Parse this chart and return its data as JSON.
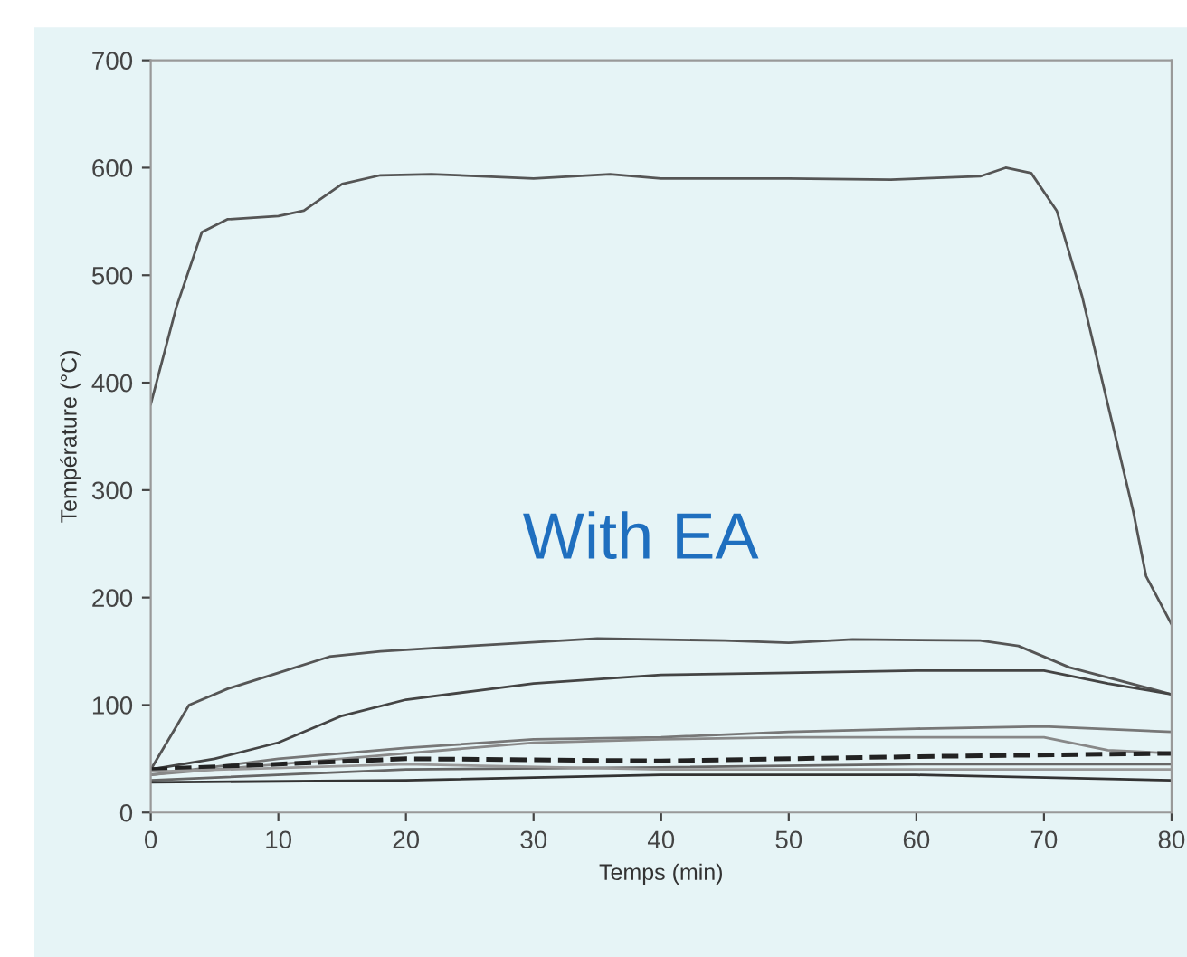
{
  "chart_data": {
    "type": "line",
    "xlabel": "Temps (min)",
    "ylabel": "Température (°C)",
    "annotations": [
      "With EA"
    ],
    "xlim": [
      0,
      80
    ],
    "ylim": [
      0,
      700
    ],
    "xticks": [
      0,
      10,
      20,
      30,
      40,
      50,
      60,
      70,
      80
    ],
    "yticks": [
      0,
      100,
      200,
      300,
      400,
      500,
      600,
      700
    ],
    "grid": false,
    "legend": false,
    "marker": "none",
    "line_style": "solid",
    "series": [
      {
        "color": "#555555",
        "x": [
          0,
          2,
          4,
          6,
          10,
          12,
          15,
          18,
          22,
          30,
          36,
          40,
          50,
          58,
          65,
          67,
          69,
          71,
          73,
          75,
          77,
          78,
          80
        ],
        "values": [
          380,
          470,
          540,
          552,
          555,
          560,
          585,
          593,
          594,
          590,
          594,
          590,
          590,
          589,
          592,
          600,
          595,
          560,
          480,
          380,
          280,
          220,
          175
        ]
      },
      {
        "color": "#555555",
        "x": [
          0,
          3,
          6,
          10,
          14,
          18,
          25,
          35,
          45,
          50,
          55,
          65,
          68,
          72,
          80
        ],
        "values": [
          40,
          100,
          115,
          130,
          145,
          150,
          155,
          162,
          160,
          158,
          161,
          160,
          155,
          135,
          110
        ]
      },
      {
        "color": "#444444",
        "x": [
          0,
          5,
          10,
          15,
          20,
          30,
          40,
          50,
          60,
          70,
          75,
          80
        ],
        "values": [
          40,
          50,
          65,
          90,
          105,
          120,
          128,
          130,
          132,
          132,
          120,
          110
        ]
      },
      {
        "color": "#777777",
        "x": [
          0,
          10,
          20,
          30,
          40,
          50,
          60,
          70,
          80
        ],
        "values": [
          35,
          50,
          60,
          68,
          70,
          75,
          78,
          80,
          75
        ]
      },
      {
        "color": "#888888",
        "x": [
          0,
          10,
          20,
          30,
          40,
          50,
          60,
          70,
          75,
          80
        ],
        "values": [
          35,
          45,
          55,
          65,
          68,
          70,
          70,
          70,
          58,
          55
        ]
      },
      {
        "color": "#222222",
        "line_style": "dashed",
        "x": [
          0,
          20,
          40,
          60,
          80
        ],
        "values": [
          40,
          50,
          48,
          52,
          55
        ]
      },
      {
        "color": "#666666",
        "x": [
          0,
          20,
          40,
          60,
          80
        ],
        "values": [
          30,
          40,
          42,
          45,
          45
        ]
      },
      {
        "color": "#333333",
        "x": [
          0,
          20,
          40,
          60,
          80
        ],
        "values": [
          28,
          30,
          35,
          35,
          30
        ]
      },
      {
        "color": "#999999",
        "x": [
          0,
          20,
          40,
          60,
          80
        ],
        "values": [
          38,
          45,
          40,
          40,
          40
        ]
      }
    ]
  }
}
